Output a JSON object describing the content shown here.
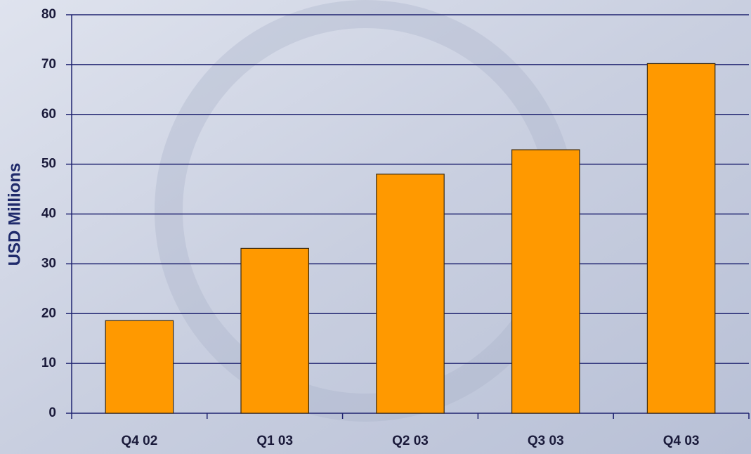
{
  "chart_data": {
    "type": "bar",
    "y_label": "USD Millions",
    "categories": [
      "Q4 02",
      "Q1 03",
      "Q2 03",
      "Q3 03",
      "Q4 03"
    ],
    "values": [
      18.6,
      33.1,
      48,
      52.9,
      70.2
    ],
    "color": "#ff9900",
    "ylim": [
      0,
      80
    ],
    "yticks": [
      0,
      10,
      20,
      30,
      40,
      50,
      60,
      70,
      80
    ],
    "grid": true
  }
}
